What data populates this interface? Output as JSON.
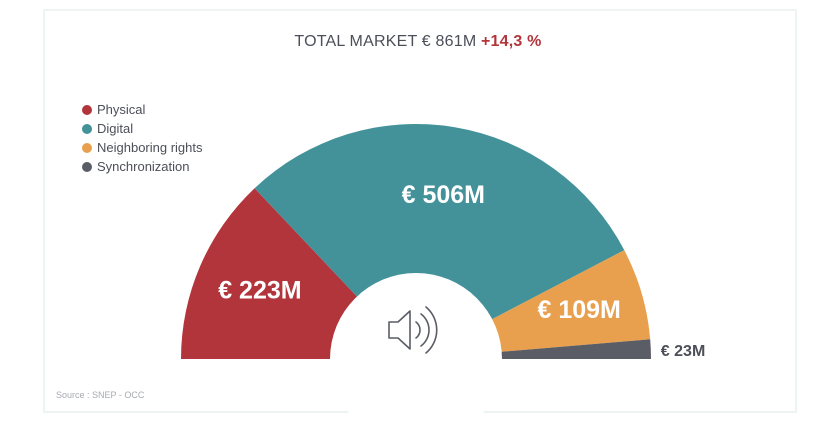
{
  "title": {
    "text": "TOTAL MARKET € 861M",
    "growth": "+14,3 %"
  },
  "source": "Source : SNEP - OCC",
  "center_icon": "speaker-icon",
  "chart_data": {
    "type": "pie",
    "variant": "semicircle-donut",
    "title": "TOTAL MARKET € 861M +14,3 %",
    "total": 861,
    "unit": "€M",
    "legend_position": "top-left",
    "slices": [
      {
        "name": "Physical",
        "value": 223,
        "label": "€ 223M",
        "color": "#b1353b",
        "label_color": "#ffffff"
      },
      {
        "name": "Digital",
        "value": 506,
        "label": "€ 506M",
        "color": "#43929a",
        "label_color": "#ffffff"
      },
      {
        "name": "Neighboring rights",
        "value": 109,
        "label": "€ 109M",
        "color": "#e8a04e",
        "label_color": "#ffffff"
      },
      {
        "name": "Synchronization",
        "value": 23,
        "label": "€ 23M",
        "color": "#5a5d66",
        "label_color": "#4c4f59"
      }
    ]
  }
}
